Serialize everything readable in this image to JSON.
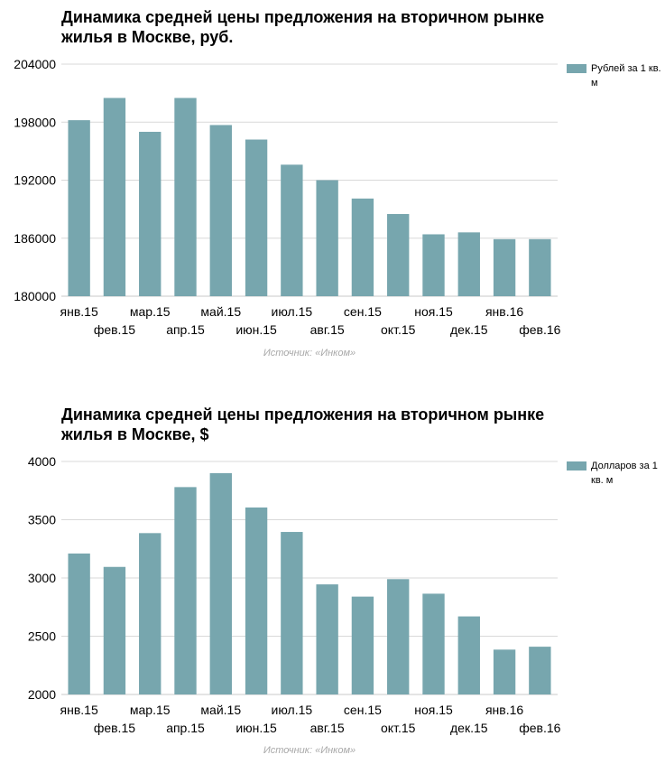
{
  "colors": {
    "bar": "#77a6ae",
    "grid": "#d9d9d9",
    "axis": "#c8c8c8"
  },
  "source_text": "Источник: «Инком»",
  "chart_data": [
    {
      "type": "bar",
      "title_lines": [
        "Динамика средней цены предложения на вторичном рынке",
        "жилья в Москве, руб."
      ],
      "categories": [
        "янв.15",
        "фев.15",
        "мар.15",
        "апр.15",
        "май.15",
        "июн.15",
        "июл.15",
        "авг.15",
        "сен.15",
        "окт.15",
        "ноя.15",
        "дек.15",
        "янв.16",
        "фев.16"
      ],
      "series": [
        {
          "name": "Рублей за 1 кв. м",
          "values": [
            198200,
            200500,
            197000,
            200500,
            197700,
            196200,
            193600,
            192000,
            190100,
            188500,
            186400,
            186600,
            185900,
            185900
          ]
        }
      ],
      "ylim": [
        180000,
        204000
      ],
      "yticks": [
        180000,
        186000,
        192000,
        198000,
        204000
      ],
      "grid": true,
      "legend": "right"
    },
    {
      "type": "bar",
      "title_lines": [
        "Динамика средней цены предложения на вторичном рынке",
        "жилья в Москве, $"
      ],
      "categories": [
        "янв.15",
        "фев.15",
        "мар.15",
        "апр.15",
        "май.15",
        "июн.15",
        "июл.15",
        "авг.15",
        "сен.15",
        "окт.15",
        "ноя.15",
        "дек.15",
        "янв.16",
        "фев.16"
      ],
      "series": [
        {
          "name": "Долларов за 1 кв. м",
          "values": [
            3210,
            3095,
            3385,
            3780,
            3900,
            3605,
            3395,
            2945,
            2840,
            2990,
            2865,
            2670,
            2385,
            2410
          ]
        }
      ],
      "ylim": [
        2000,
        4000
      ],
      "yticks": [
        2000,
        2500,
        3000,
        3500,
        4000
      ],
      "grid": true,
      "legend": "right"
    }
  ]
}
